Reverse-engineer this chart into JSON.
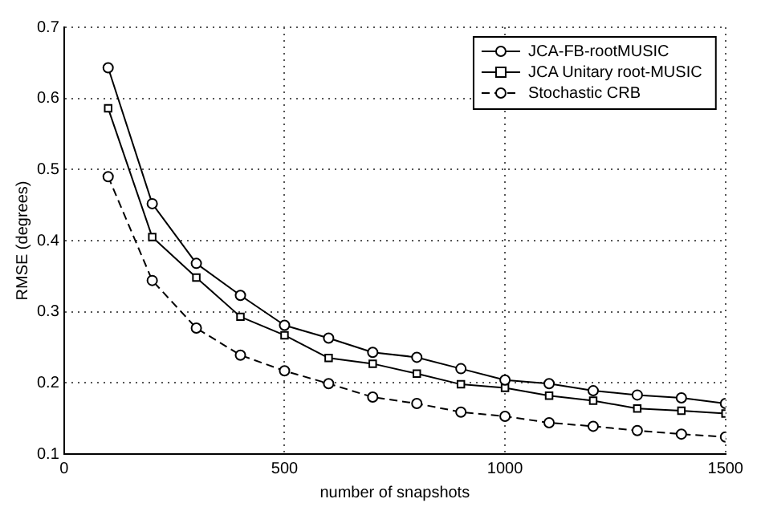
{
  "chart_data": {
    "type": "line",
    "xlabel": "number of snapshots",
    "ylabel": "RMSE (degrees)",
    "x": [
      100,
      200,
      300,
      400,
      500,
      600,
      700,
      800,
      900,
      1000,
      1100,
      1200,
      1300,
      1400,
      1500
    ],
    "series": [
      {
        "name": "JCA-FB-rootMUSIC",
        "color": "#000000",
        "marker": "circle",
        "line_style": "solid",
        "values": [
          0.643,
          0.452,
          0.368,
          0.323,
          0.281,
          0.263,
          0.243,
          0.236,
          0.22,
          0.204,
          0.199,
          0.189,
          0.183,
          0.179,
          0.171
        ]
      },
      {
        "name": "JCA Unitary root-MUSIC",
        "color": "#000000",
        "marker": "square",
        "line_style": "solid",
        "values": [
          0.586,
          0.405,
          0.348,
          0.293,
          0.267,
          0.235,
          0.227,
          0.213,
          0.198,
          0.193,
          0.182,
          0.175,
          0.164,
          0.161,
          0.157
        ]
      },
      {
        "name": "Stochastic CRB",
        "color": "#000000",
        "marker": "circle",
        "line_style": "dashed",
        "values": [
          0.49,
          0.344,
          0.277,
          0.239,
          0.217,
          0.199,
          0.18,
          0.171,
          0.159,
          0.153,
          0.144,
          0.139,
          0.133,
          0.128,
          0.124
        ]
      }
    ],
    "xlim": [
      0,
      1500
    ],
    "xticks": [
      0,
      500,
      1000,
      1500
    ],
    "ylim": [
      0.1,
      0.7
    ],
    "yticks": [
      0.1,
      0.2,
      0.3,
      0.4,
      0.5,
      0.6,
      0.7
    ],
    "grid": true,
    "legend": "top right"
  }
}
